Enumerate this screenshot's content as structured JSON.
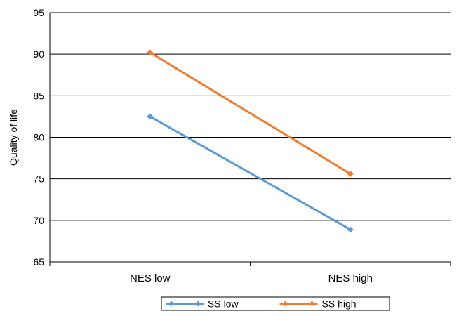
{
  "chart_data": {
    "type": "line",
    "title": "",
    "xlabel": "",
    "ylabel": "Quality of life",
    "categories": [
      "NES low",
      "NES high"
    ],
    "ylim": [
      65,
      95
    ],
    "yticks": [
      65,
      70,
      75,
      80,
      85,
      90,
      95
    ],
    "grid": "horizontal",
    "legend_position": "bottom",
    "series": [
      {
        "name": "SS low",
        "values": [
          82.5,
          68.9
        ],
        "color": "#5b9bd5",
        "marker": "diamond"
      },
      {
        "name": "SS high",
        "values": [
          90.2,
          75.6
        ],
        "color": "#ed7d31",
        "marker": "diamond"
      }
    ]
  }
}
